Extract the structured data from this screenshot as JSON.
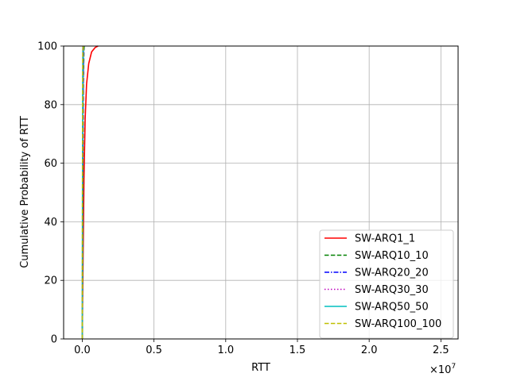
{
  "chart_data": {
    "type": "line",
    "title": "",
    "xlabel": "RTT",
    "ylabel": "Cumulative Probability of RTT",
    "x_multiplier_label": "×10",
    "x_multiplier_exp": "7",
    "xlim": [
      -1300000,
      26200000
    ],
    "ylim": [
      0,
      100
    ],
    "x_ticks": [
      0,
      5000000,
      10000000,
      15000000,
      20000000,
      25000000
    ],
    "x_tick_labels": [
      "0.0",
      "0.5",
      "1.0",
      "1.5",
      "2.0",
      "2.5"
    ],
    "y_ticks": [
      0,
      20,
      40,
      60,
      80,
      100
    ],
    "y_tick_labels": [
      "0",
      "20",
      "40",
      "60",
      "80",
      "100"
    ],
    "grid": true,
    "legend_position": "lower-right",
    "series": [
      {
        "name": "SW-ARQ1_1",
        "color": "#ff0000",
        "dash": "solid",
        "x": [
          0,
          20000,
          60000,
          120000,
          200000,
          300000,
          450000,
          650000,
          900000,
          1100000
        ],
        "y": [
          0,
          10,
          30,
          55,
          75,
          87,
          94,
          98,
          99.5,
          100
        ]
      },
      {
        "name": "SW-ARQ10_10",
        "color": "#008000",
        "dash": "dashed",
        "x": [
          0,
          20000,
          40000,
          60000,
          80000,
          110000,
          130000
        ],
        "y": [
          0,
          20,
          45,
          70,
          88,
          98,
          100
        ]
      },
      {
        "name": "SW-ARQ20_20",
        "color": "#0000ff",
        "dash": "dashdot",
        "x": [
          0,
          15000,
          30000,
          50000,
          70000,
          90000,
          110000
        ],
        "y": [
          0,
          20,
          45,
          70,
          88,
          98,
          100
        ]
      },
      {
        "name": "SW-ARQ30_30",
        "color": "#bf00bf",
        "dash": "dotted",
        "x": [
          0,
          10000,
          25000,
          40000,
          60000,
          80000,
          100000
        ],
        "y": [
          0,
          20,
          45,
          70,
          88,
          98,
          100
        ]
      },
      {
        "name": "SW-ARQ50_50",
        "color": "#00bfbf",
        "dash": "solid",
        "x": [
          0,
          5000,
          15000,
          25000,
          40000,
          60000,
          80000
        ],
        "y": [
          0,
          20,
          45,
          70,
          88,
          98,
          100
        ]
      },
      {
        "name": "SW-ARQ100_100",
        "color": "#bfbf00",
        "dash": "dashed",
        "x": [
          0,
          5000,
          10000,
          20000,
          30000,
          50000,
          70000
        ],
        "y": [
          0,
          20,
          45,
          70,
          88,
          98,
          100
        ]
      }
    ]
  }
}
